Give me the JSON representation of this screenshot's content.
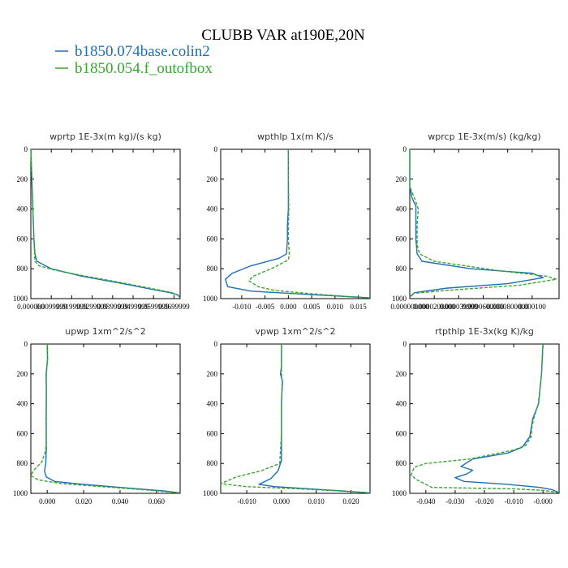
{
  "figure": {
    "title": "CLUBB VAR at190E,20N",
    "legend": [
      {
        "label": "b1850.074base.colin2",
        "color": "#1f6fb4",
        "dash": "solid"
      },
      {
        "label": "b1850.054.f_outofbox",
        "color": "#3aa52f",
        "dash": "dashed"
      }
    ]
  },
  "chart_data": [
    {
      "type": "line",
      "title": "wprtp  1E-3x(m kg)/(s kg)",
      "xlim": [
        0.0,
        0.073
      ],
      "ylim": [
        1000,
        0
      ],
      "yticks": [
        "0",
        "200",
        "400",
        "600",
        "800",
        "1000"
      ],
      "xticks": [
        {
          "v": 0.0,
          "label": "0.000000"
        },
        {
          "v": 0.01,
          "label": "0.0099999"
        },
        {
          "v": 0.02,
          "label": "0.0199999"
        },
        {
          "v": 0.03,
          "label": "0.0299999"
        },
        {
          "v": 0.04,
          "label": "0.0399999"
        },
        {
          "v": 0.05,
          "label": "0.0499999"
        },
        {
          "v": 0.06,
          "label": "0.0599999"
        },
        {
          "v": 0.07,
          "label": "0.0699999"
        }
      ],
      "series": [
        {
          "name": "b1850.074base.colin2",
          "points": [
            [
              0.0,
              0
            ],
            [
              0.0005,
              200
            ],
            [
              0.001,
              400
            ],
            [
              0.0015,
              600
            ],
            [
              0.002,
              700
            ],
            [
              0.003,
              750
            ],
            [
              0.01,
              800
            ],
            [
              0.025,
              850
            ],
            [
              0.045,
              900
            ],
            [
              0.06,
              940
            ],
            [
              0.068,
              960
            ],
            [
              0.072,
              975
            ],
            [
              0.073,
              995
            ]
          ]
        },
        {
          "name": "b1850.054.f_outofbox",
          "points": [
            [
              0.0,
              0
            ],
            [
              0.0005,
              200
            ],
            [
              0.001,
              400
            ],
            [
              0.0015,
              600
            ],
            [
              0.002,
              750
            ],
            [
              0.004,
              780
            ],
            [
              0.012,
              810
            ],
            [
              0.025,
              845
            ],
            [
              0.045,
              895
            ],
            [
              0.06,
              935
            ],
            [
              0.069,
              960
            ],
            [
              0.072,
              978
            ],
            [
              0.073,
              995
            ]
          ]
        }
      ]
    },
    {
      "type": "line",
      "title": "wpthlp  1x(m K)/s",
      "xlim": [
        -0.0145,
        0.0175
      ],
      "ylim": [
        1000,
        0
      ],
      "yticks": [
        "0",
        "200",
        "400",
        "600",
        "800",
        "1000"
      ],
      "xticks": [
        {
          "v": -0.01,
          "label": "-0.010"
        },
        {
          "v": -0.005,
          "label": "-0.005"
        },
        {
          "v": 0.0,
          "label": "0.000"
        },
        {
          "v": 0.005,
          "label": "0.005"
        },
        {
          "v": 0.01,
          "label": "0.010"
        },
        {
          "v": 0.015,
          "label": "0.015"
        }
      ],
      "series": [
        {
          "name": "b1850.074base.colin2",
          "points": [
            [
              0.0,
              0
            ],
            [
              0.0,
              200
            ],
            [
              0.0,
              400
            ],
            [
              -0.0002,
              500
            ],
            [
              -0.0002,
              600
            ],
            [
              -0.0004,
              700
            ],
            [
              -0.002,
              730
            ],
            [
              -0.008,
              780
            ],
            [
              -0.012,
              830
            ],
            [
              -0.0135,
              870
            ],
            [
              -0.013,
              920
            ],
            [
              -0.008,
              950
            ],
            [
              0.003,
              970
            ],
            [
              0.012,
              985
            ],
            [
              0.0175,
              995
            ]
          ]
        },
        {
          "name": "b1850.054.f_outofbox",
          "points": [
            [
              0.0,
              0
            ],
            [
              0.0,
              200
            ],
            [
              0.0001,
              400
            ],
            [
              0.0,
              500
            ],
            [
              0.0,
              600
            ],
            [
              0.0002,
              700
            ],
            [
              0.0,
              740
            ],
            [
              -0.003,
              790
            ],
            [
              -0.0075,
              850
            ],
            [
              -0.0085,
              880
            ],
            [
              -0.0065,
              920
            ],
            [
              -0.003,
              945
            ],
            [
              0.004,
              965
            ],
            [
              0.012,
              985
            ],
            [
              0.0175,
              995
            ]
          ]
        }
      ]
    },
    {
      "type": "line",
      "title": "wprcp  1E-3x(m/s) (kg/kg)",
      "xlim": [
        0.0,
        0.000122
      ],
      "ylim": [
        1000,
        0
      ],
      "yticks": [
        "0",
        "200",
        "400",
        "600",
        "800",
        "1000"
      ],
      "xticks": [
        {
          "v": 0.0,
          "label": "0.000000000"
        },
        {
          "v": 2e-05,
          "label": "0.0000200000"
        },
        {
          "v": 4e-05,
          "label": "0.000039999"
        },
        {
          "v": 6e-05,
          "label": "0.0000600000"
        },
        {
          "v": 8e-05,
          "label": "0.0000800000"
        },
        {
          "v": 0.0001,
          "label": "0.000100"
        }
      ],
      "series": [
        {
          "name": "b1850.074base.colin2",
          "points": [
            [
              0.0,
              0
            ],
            [
              0.0,
              250
            ],
            [
              2e-06,
              330
            ],
            [
              5e-06,
              380
            ],
            [
              5e-06,
              600
            ],
            [
              6e-06,
              700
            ],
            [
              1e-05,
              750
            ],
            [
              5e-05,
              800
            ],
            [
              0.0001,
              830
            ],
            [
              0.000109,
              860
            ],
            [
              8e-05,
              900
            ],
            [
              3e-05,
              930
            ],
            [
              4e-06,
              960
            ],
            [
              0.0,
              990
            ]
          ]
        },
        {
          "name": "b1850.054.f_outofbox",
          "points": [
            [
              0.0,
              0
            ],
            [
              0.0,
              250
            ],
            [
              4e-06,
              330
            ],
            [
              7e-06,
              400
            ],
            [
              6e-06,
              500
            ],
            [
              6e-06,
              640
            ],
            [
              8e-06,
              700
            ],
            [
              2e-05,
              750
            ],
            [
              7e-05,
              810
            ],
            [
              0.000112,
              850
            ],
            [
              0.00012,
              870
            ],
            [
              9e-05,
              910
            ],
            [
              3e-05,
              945
            ],
            [
              3e-06,
              965
            ],
            [
              0.0,
              990
            ]
          ]
        }
      ]
    },
    {
      "type": "line",
      "title": "upwp  1xm^2/s^2",
      "xlim": [
        -0.009,
        0.073
      ],
      "ylim": [
        1000,
        0
      ],
      "yticks": [
        "0",
        "200",
        "400",
        "600",
        "800",
        "1000"
      ],
      "xticks": [
        {
          "v": 0.0,
          "label": "0.000"
        },
        {
          "v": 0.02,
          "label": "0.020"
        },
        {
          "v": 0.04,
          "label": "0.040"
        },
        {
          "v": 0.06,
          "label": "0.060"
        }
      ],
      "series": [
        {
          "name": "b1850.074base.colin2",
          "points": [
            [
              0.0,
              0
            ],
            [
              0.0002,
              100
            ],
            [
              -0.0006,
              200
            ],
            [
              -0.0005,
              300
            ],
            [
              -0.0006,
              500
            ],
            [
              -0.0005,
              700
            ],
            [
              -0.0008,
              800
            ],
            [
              -0.0015,
              850
            ],
            [
              -0.0005,
              890
            ],
            [
              0.004,
              920
            ],
            [
              0.02,
              940
            ],
            [
              0.045,
              965
            ],
            [
              0.065,
              985
            ],
            [
              0.073,
              997
            ]
          ]
        },
        {
          "name": "b1850.054.f_outofbox",
          "points": [
            [
              0.0,
              0
            ],
            [
              0.0001,
              100
            ],
            [
              -0.0005,
              220
            ],
            [
              -0.0004,
              300
            ],
            [
              -0.0005,
              500
            ],
            [
              -0.0005,
              660
            ],
            [
              -0.001,
              720
            ],
            [
              -0.003,
              790
            ],
            [
              -0.007,
              840
            ],
            [
              -0.009,
              880
            ],
            [
              -0.005,
              910
            ],
            [
              0.008,
              935
            ],
            [
              0.03,
              955
            ],
            [
              0.055,
              978
            ],
            [
              0.073,
              997
            ]
          ]
        }
      ]
    },
    {
      "type": "line",
      "title": "vpwp  1xm^2/s^2",
      "xlim": [
        -0.0175,
        0.0255
      ],
      "ylim": [
        1000,
        0
      ],
      "yticks": [
        "0",
        "200",
        "400",
        "600",
        "800",
        "1000"
      ],
      "xticks": [
        {
          "v": -0.01,
          "label": "-0.010"
        },
        {
          "v": 0.0,
          "label": "0.000"
        },
        {
          "v": 0.01,
          "label": "0.010"
        },
        {
          "v": 0.02,
          "label": "0.020"
        }
      ],
      "series": [
        {
          "name": "b1850.074base.colin2",
          "points": [
            [
              0.0,
              0
            ],
            [
              0.0,
              150
            ],
            [
              -0.0003,
              200
            ],
            [
              0.0003,
              250
            ],
            [
              0.0,
              400
            ],
            [
              0.0,
              600
            ],
            [
              0.0,
              780
            ],
            [
              -0.001,
              850
            ],
            [
              -0.003,
              900
            ],
            [
              -0.0065,
              940
            ],
            [
              -0.002,
              955
            ],
            [
              0.008,
              970
            ],
            [
              0.018,
              985
            ],
            [
              0.0255,
              997
            ]
          ]
        },
        {
          "name": "b1850.054.f_outofbox",
          "points": [
            [
              0.0,
              0
            ],
            [
              0.0,
              150
            ],
            [
              0.0,
              200
            ],
            [
              0.0002,
              240
            ],
            [
              0.0,
              400
            ],
            [
              0.0,
              600
            ],
            [
              -0.0005,
              800
            ],
            [
              -0.006,
              850
            ],
            [
              -0.013,
              890
            ],
            [
              -0.0175,
              935
            ],
            [
              -0.01,
              955
            ],
            [
              0.005,
              970
            ],
            [
              0.018,
              985
            ],
            [
              0.0255,
              997
            ]
          ]
        }
      ]
    },
    {
      "type": "line",
      "title": "rtpthlp  1E-3x(kg K)/kg",
      "xlim": [
        -0.0455,
        0.0055
      ],
      "ylim": [
        1000,
        0
      ],
      "yticks": [
        "0",
        "200",
        "400",
        "600",
        "800",
        "1000"
      ],
      "xticks": [
        {
          "v": -0.04,
          "label": "-0.040"
        },
        {
          "v": -0.03,
          "label": "-0.030"
        },
        {
          "v": -0.02,
          "label": "-0.020"
        },
        {
          "v": -0.01,
          "label": "-0.010"
        },
        {
          "v": 0.0,
          "label": "-0.000"
        }
      ],
      "series": [
        {
          "name": "b1850.074base.colin2",
          "points": [
            [
              0.0,
              0
            ],
            [
              -0.0005,
              200
            ],
            [
              -0.0015,
              400
            ],
            [
              -0.0035,
              500
            ],
            [
              -0.004,
              560
            ],
            [
              -0.0045,
              620
            ],
            [
              -0.007,
              690
            ],
            [
              -0.012,
              730
            ],
            [
              -0.024,
              770
            ],
            [
              -0.028,
              820
            ],
            [
              -0.024,
              845
            ],
            [
              -0.026,
              870
            ],
            [
              -0.03,
              895
            ],
            [
              -0.027,
              920
            ],
            [
              -0.012,
              940
            ],
            [
              -0.001,
              960
            ],
            [
              0.003,
              975
            ],
            [
              0.0055,
              995
            ]
          ]
        },
        {
          "name": "b1850.054.f_outofbox",
          "points": [
            [
              0.0,
              0
            ],
            [
              -0.0005,
              200
            ],
            [
              -0.0016,
              400
            ],
            [
              -0.0032,
              500
            ],
            [
              -0.0038,
              560
            ],
            [
              -0.004,
              620
            ],
            [
              -0.006,
              680
            ],
            [
              -0.01,
              710
            ],
            [
              -0.025,
              770
            ],
            [
              -0.04,
              800
            ],
            [
              -0.044,
              825
            ],
            [
              -0.0445,
              850
            ],
            [
              -0.045,
              880
            ],
            [
              -0.043,
              910
            ],
            [
              -0.04,
              940
            ],
            [
              -0.038,
              960
            ],
            [
              -0.01,
              970
            ],
            [
              0.0,
              980
            ],
            [
              0.0055,
              995
            ]
          ]
        }
      ]
    }
  ]
}
